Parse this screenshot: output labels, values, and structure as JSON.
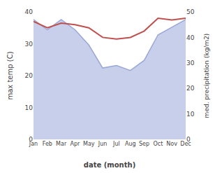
{
  "chart_data": {
    "type": "line",
    "categories": [
      "Jan",
      "Feb",
      "Mar",
      "Apr",
      "May",
      "Jun",
      "Jul",
      "Aug",
      "Sep",
      "Oct",
      "Nov",
      "Dec"
    ],
    "series": [
      {
        "type": "line",
        "color": "#c0504d",
        "values": [
          37.0,
          35.0,
          36.5,
          36.0,
          35.0,
          32.0,
          31.5,
          32.0,
          34.0,
          38.0,
          37.5,
          38.0
        ]
      },
      {
        "type": "area",
        "axis": "y2",
        "color": "#9aa8d8",
        "values": [
          47,
          43,
          47,
          43,
          37,
          28,
          29,
          27,
          31,
          41,
          44,
          47
        ]
      }
    ],
    "xlabel": "date (month)",
    "ylabel": "max temp (C)",
    "y2label": "med. precipitation (kg/m2)",
    "ylim": [
      0,
      40
    ],
    "yticks": [
      0,
      10,
      20,
      30,
      40
    ],
    "y2lim": [
      0,
      50
    ],
    "y2ticks": [
      0,
      10,
      20,
      30,
      40,
      50
    ],
    "grid": false
  }
}
